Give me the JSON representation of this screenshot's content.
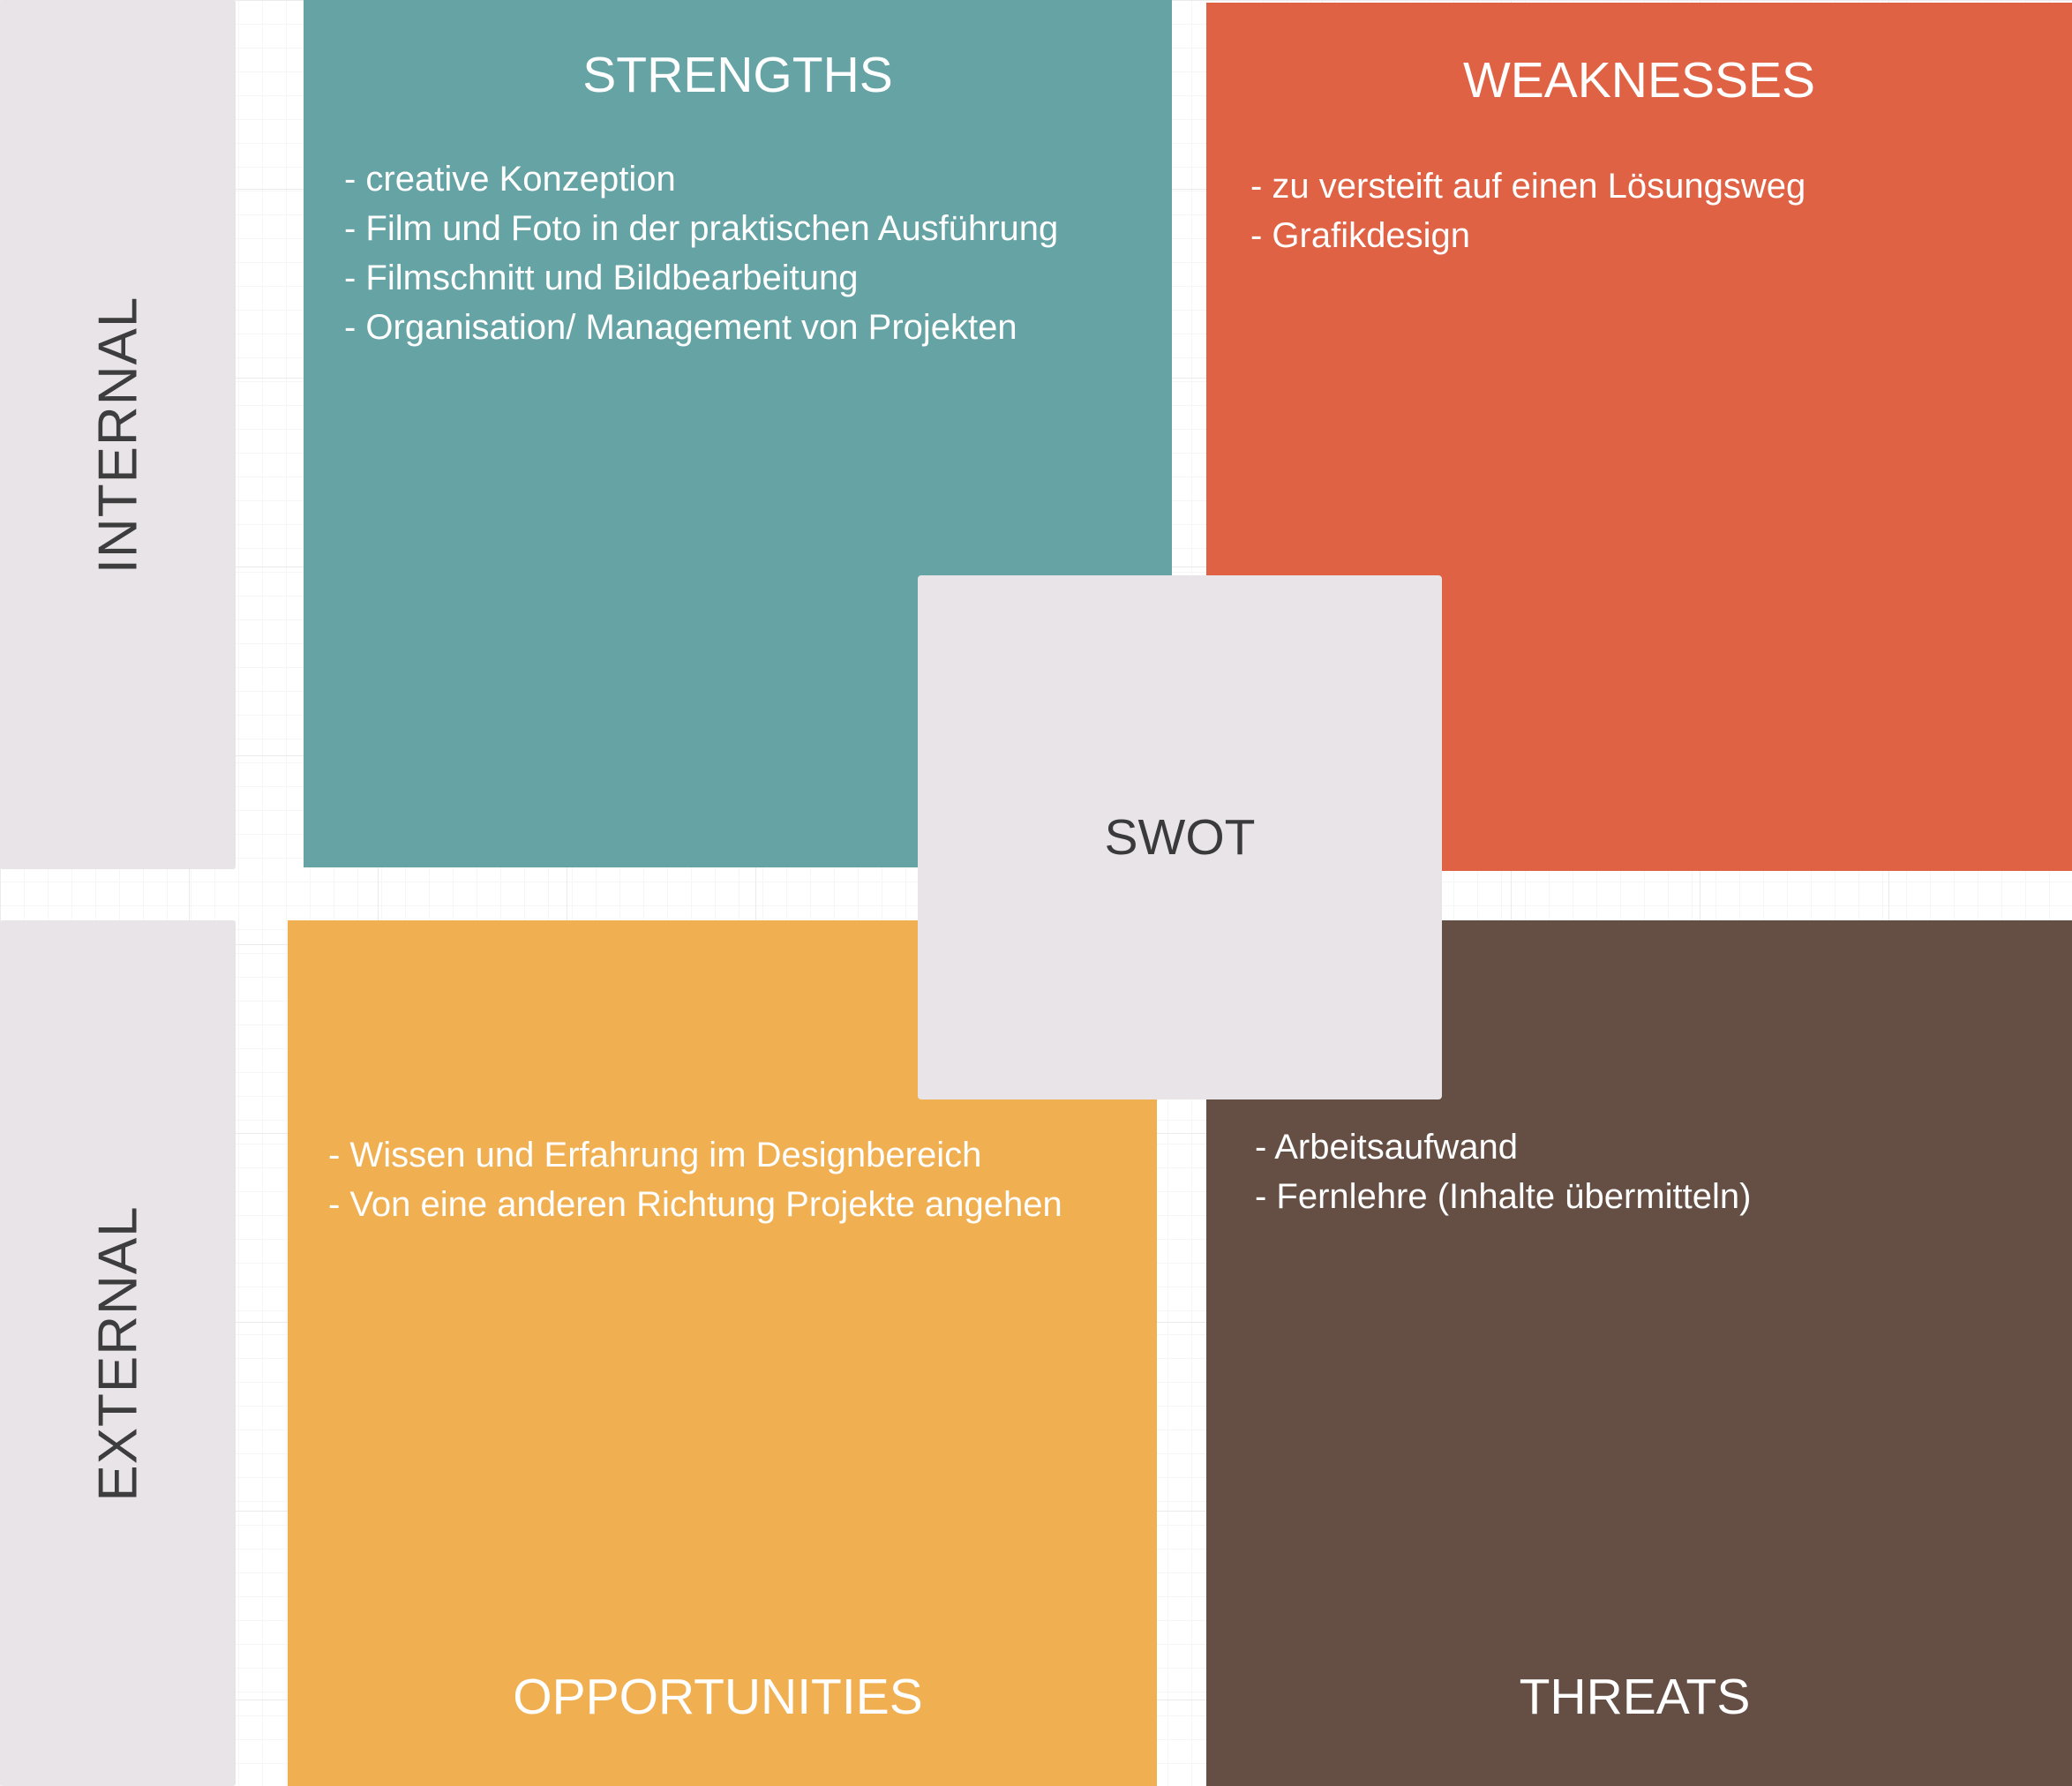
{
  "colors": {
    "strengths": "#66a3a4",
    "weaknesses": "#e06245",
    "opportunities": "#f0b052",
    "threats": "#654f44",
    "neutral": "#e9e4e8",
    "neutral_text": "#3d3d3d",
    "white_text": "#ffffff"
  },
  "sides": {
    "internal": "INTERNAL",
    "external": "EXTERNAL"
  },
  "center": {
    "label": "SWOT"
  },
  "strengths": {
    "title": "STRENGTHS",
    "items": [
      "- creative Konzeption",
      "- Film und Foto in der praktischen Ausführung",
      "- Filmschnitt und Bildbearbeitung",
      "- Organisation/ Management von Projekten"
    ]
  },
  "weaknesses": {
    "title": "WEAKNESSES",
    "items": [
      "- zu versteift auf einen Lösungsweg",
      "- Grafikdesign"
    ]
  },
  "opportunities": {
    "title": "OPPORTUNITIES",
    "items": [
      "- Wissen und Erfahrung im Designbereich",
      "- Von eine anderen Richtung Projekte angehen"
    ]
  },
  "threats": {
    "title": "THREATS",
    "items": [
      "- Arbeitsaufwand",
      "- Fernlehre (Inhalte übermitteln)"
    ]
  }
}
